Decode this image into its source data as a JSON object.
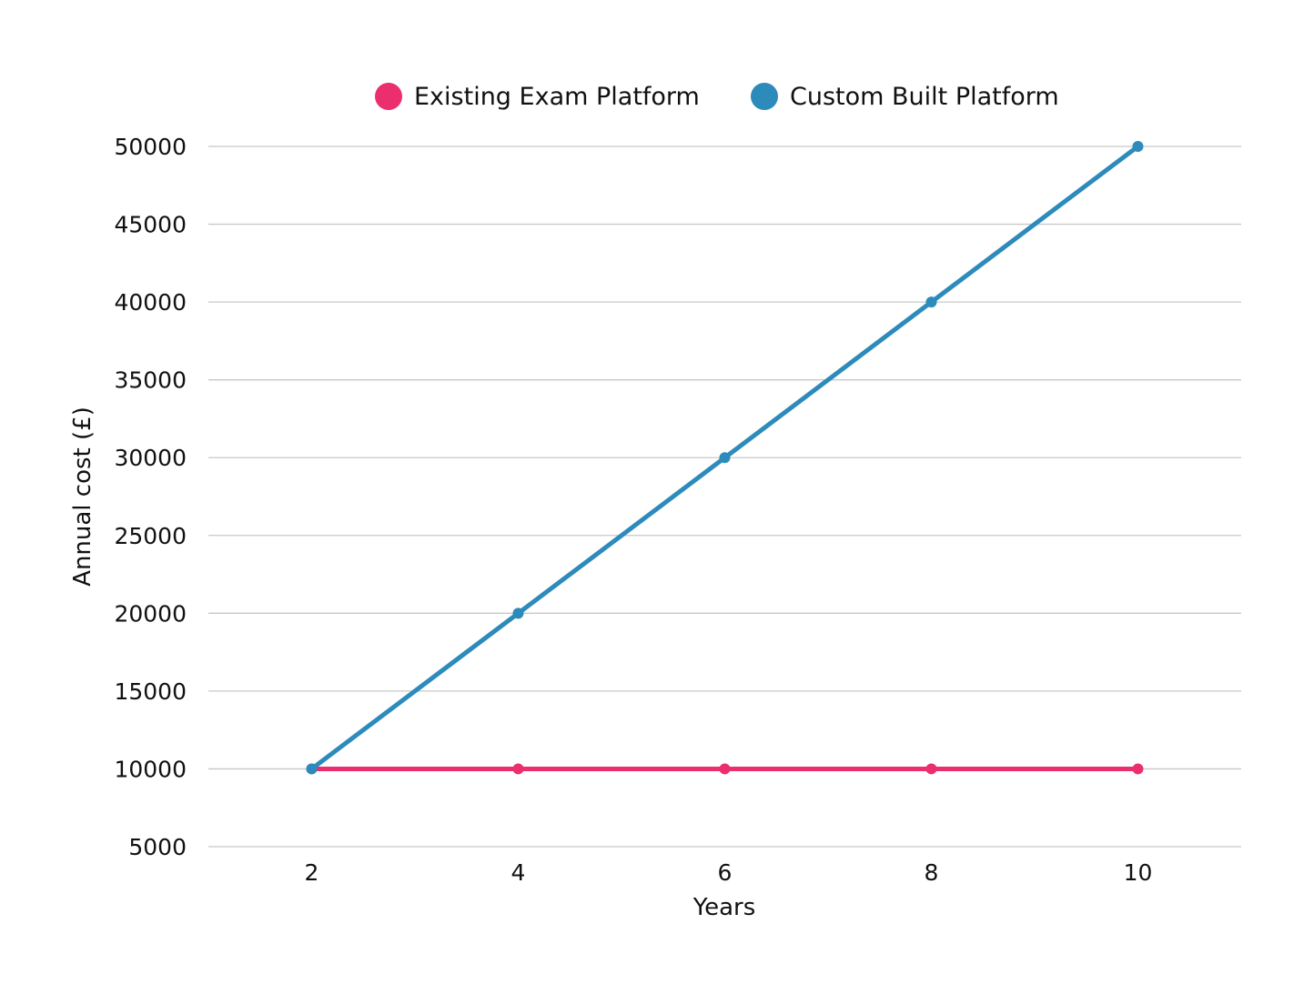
{
  "chart_data": {
    "type": "line",
    "x": [
      2,
      4,
      6,
      8,
      10
    ],
    "series": [
      {
        "name": "Existing Exam Platform",
        "color": "#ea2e6e",
        "values": [
          10000,
          10000,
          10000,
          10000,
          10000
        ]
      },
      {
        "name": "Custom Built Platform",
        "color": "#2d8bbb",
        "values": [
          10000,
          20000,
          30000,
          40000,
          50000
        ]
      }
    ],
    "xlabel": "Years",
    "ylabel": "Annual cost (£)",
    "xlim": [
      1,
      11
    ],
    "ylim": [
      5000,
      50000
    ],
    "xticks": [
      "2",
      "4",
      "6",
      "8",
      "10"
    ],
    "yticks": [
      "5000",
      "10000",
      "15000",
      "20000",
      "25000",
      "30000",
      "35000",
      "40000",
      "45000",
      "50000"
    ],
    "grid": "horizontal",
    "legend": "top-center"
  }
}
